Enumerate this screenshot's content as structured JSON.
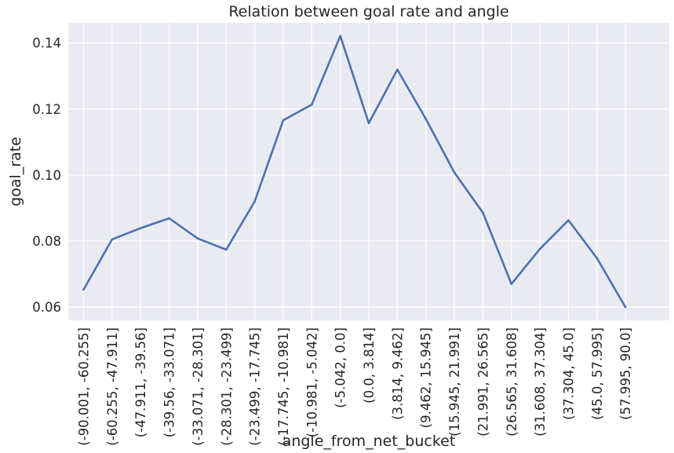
{
  "chart_data": {
    "type": "line",
    "title": "Relation between goal rate and angle",
    "xlabel": "angle_from_net_bucket",
    "ylabel": "goal_rate",
    "categories": [
      "(-90.001, -60.255]",
      "(-60.255, -47.911]",
      "(-47.911, -39.56]",
      "(-39.56, -33.071]",
      "(-33.071, -28.301]",
      "(-28.301, -23.499]",
      "(-23.499, -17.745]",
      "(-17.745, -10.981]",
      "(-10.981, -5.042]",
      "(-5.042, 0.0]",
      "(0.0, 3.814]",
      "(3.814, 9.462]",
      "(9.462, 15.945]",
      "(15.945, 21.991]",
      "(21.991, 26.565]",
      "(26.565, 31.608]",
      "(31.608, 37.304]",
      "(37.304, 45.0]",
      "(45.0, 57.995]",
      "(57.995, 90.0]"
    ],
    "series": [
      {
        "values": [
          0.0653,
          0.0805,
          0.0839,
          0.0869,
          0.0808,
          0.0774,
          0.092,
          0.1166,
          0.1213,
          0.1421,
          0.1157,
          0.1319,
          0.117,
          0.1008,
          0.0886,
          0.067,
          0.0776,
          0.0863,
          0.0748,
          0.06
        ],
        "color": "#4c72b0"
      }
    ],
    "yticks": [
      "0.06",
      "0.08",
      "0.10",
      "0.12",
      "0.14"
    ],
    "ytick_values": [
      0.06,
      0.08,
      0.1,
      0.12,
      0.14
    ],
    "ylim": [
      0.056,
      0.1461
    ],
    "grid": true,
    "background": "#eaeaf2"
  }
}
